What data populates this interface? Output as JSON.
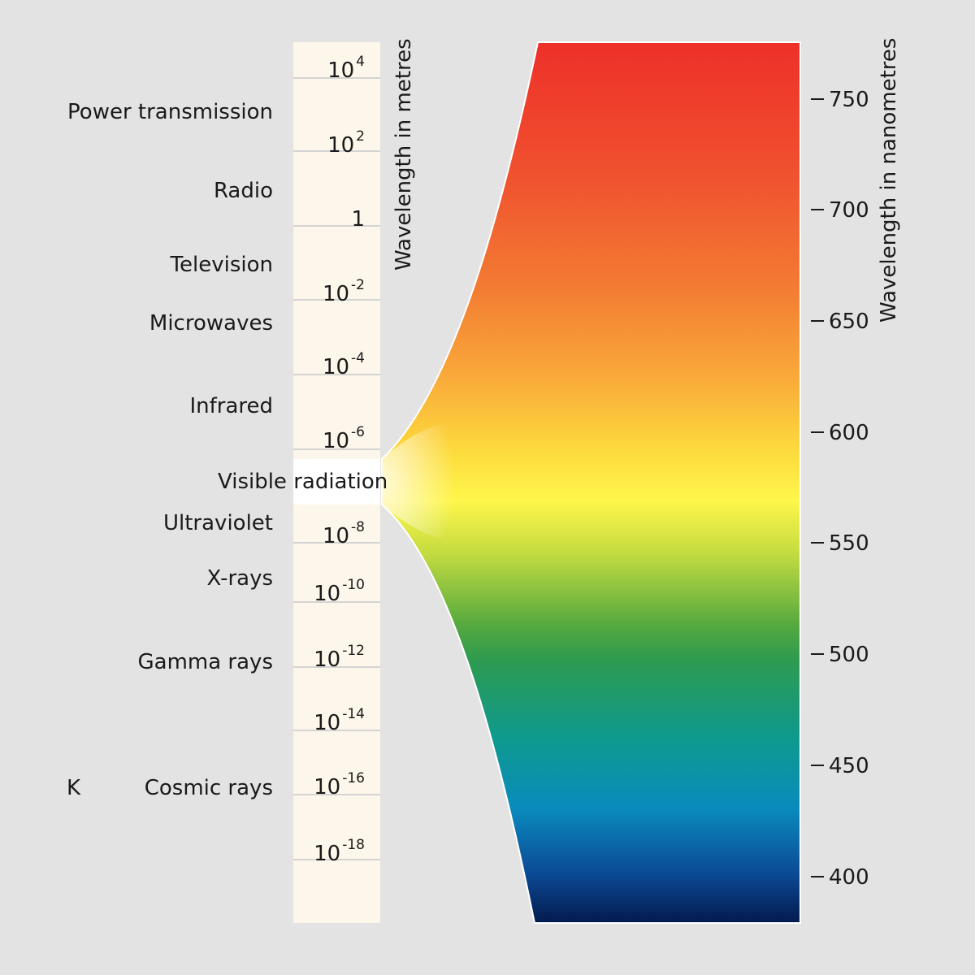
{
  "bands": [
    {
      "label": "Power transmission"
    },
    {
      "label": "Radio"
    },
    {
      "label": "Television"
    },
    {
      "label": "Microwaves"
    },
    {
      "label": "Infrared"
    },
    {
      "label": "Visible radiation"
    },
    {
      "label": "Ultraviolet"
    },
    {
      "label": "X-rays"
    },
    {
      "label": "Gamma rays"
    },
    {
      "label": "Cosmic rays"
    }
  ],
  "stray_mark": "K",
  "metre_axis": {
    "title": "Wavelength in metres",
    "ticks": [
      {
        "base": "10",
        "exp": "4"
      },
      {
        "base": "10",
        "exp": "2"
      },
      {
        "base": "1",
        "exp": ""
      },
      {
        "base": "10",
        "exp": "-2"
      },
      {
        "base": "10",
        "exp": "-4"
      },
      {
        "base": "10",
        "exp": "-6"
      },
      {
        "base": "10",
        "exp": "-8"
      },
      {
        "base": "10",
        "exp": "-10"
      },
      {
        "base": "10",
        "exp": "-12"
      },
      {
        "base": "10",
        "exp": "-14"
      },
      {
        "base": "10",
        "exp": "-16"
      },
      {
        "base": "10",
        "exp": "-18"
      }
    ]
  },
  "nm_axis": {
    "title": "Wavelength in nanometres",
    "ticks": [
      "750",
      "700",
      "650",
      "600",
      "550",
      "500",
      "450",
      "400"
    ]
  },
  "colors": {
    "background": "#e3e3e3",
    "scale_strip": "#fdf6ea",
    "spectrum_stops": [
      "#ee3029",
      "#f37c33",
      "#fbc93b",
      "#fff64b",
      "#7fbf3a",
      "#2e9b4f",
      "#0e9a8e",
      "#0a8bbd",
      "#0b4d99",
      "#041a4e"
    ]
  }
}
